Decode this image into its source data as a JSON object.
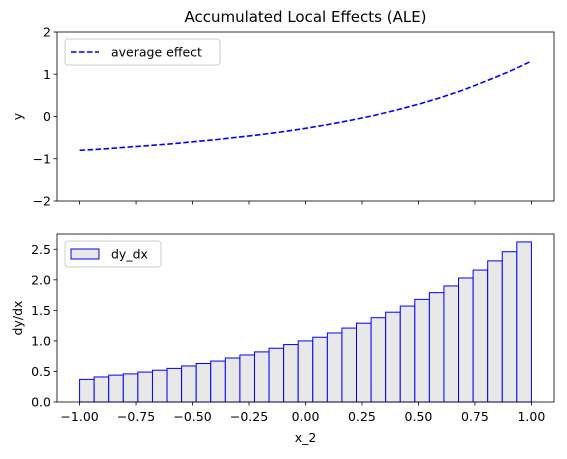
{
  "chart_data": [
    {
      "type": "line",
      "title": "Accumulated Local Effects (ALE)",
      "xlabel": "",
      "ylabel": "y",
      "xlim": [
        -1.1,
        1.1
      ],
      "ylim": [
        -2,
        2
      ],
      "xticks": [
        -1.0,
        -0.75,
        -0.5,
        -0.25,
        0.0,
        0.25,
        0.5,
        0.75,
        1.0
      ],
      "yticks": [
        -2,
        -1,
        0,
        1,
        2
      ],
      "ytick_labels": [
        "−2",
        "−1",
        "0",
        "1",
        "2"
      ],
      "legend": "top-left",
      "series": [
        {
          "name": "average effect",
          "x": [
            -1.0,
            -0.9,
            -0.8,
            -0.7,
            -0.6,
            -0.5,
            -0.4,
            -0.3,
            -0.2,
            -0.1,
            0.0,
            0.1,
            0.2,
            0.3,
            0.4,
            0.5,
            0.6,
            0.7,
            0.8,
            0.9,
            1.0
          ],
          "y": [
            -0.8,
            -0.77,
            -0.73,
            -0.69,
            -0.65,
            -0.6,
            -0.55,
            -0.49,
            -0.43,
            -0.36,
            -0.28,
            -0.19,
            -0.09,
            0.02,
            0.15,
            0.29,
            0.45,
            0.63,
            0.84,
            1.06,
            1.31
          ],
          "color": "#0000ff",
          "style": "dashed"
        }
      ]
    },
    {
      "type": "bar",
      "title": "",
      "xlabel": "x_2",
      "ylabel": "dy/dx",
      "xlim": [
        -1.1,
        1.1
      ],
      "ylim": [
        0,
        2.75
      ],
      "xticks": [
        -1.0,
        -0.75,
        -0.5,
        -0.25,
        0.0,
        0.25,
        0.5,
        0.75,
        1.0
      ],
      "xtick_labels": [
        "−1.00",
        "−0.75",
        "−0.50",
        "−0.25",
        "0.00",
        "0.25",
        "0.50",
        "0.75",
        "1.00"
      ],
      "yticks": [
        0.0,
        0.5,
        1.0,
        1.5,
        2.0,
        2.5
      ],
      "ytick_labels": [
        "0.0",
        "0.5",
        "1.0",
        "1.5",
        "2.0",
        "2.5"
      ],
      "legend": "top-left",
      "bin_edges": [
        -1.0,
        -0.9355,
        -0.871,
        -0.8065,
        -0.742,
        -0.6774,
        -0.6129,
        -0.5484,
        -0.4839,
        -0.4194,
        -0.3548,
        -0.2903,
        -0.2258,
        -0.1613,
        -0.0968,
        -0.0323,
        0.0323,
        0.0968,
        0.1613,
        0.2258,
        0.2903,
        0.3548,
        0.4194,
        0.4839,
        0.5484,
        0.6129,
        0.6774,
        0.742,
        0.8065,
        0.871,
        0.9355,
        1.0
      ],
      "series": [
        {
          "name": "dy_dx",
          "values": [
            0.37,
            0.41,
            0.44,
            0.46,
            0.49,
            0.52,
            0.55,
            0.59,
            0.63,
            0.67,
            0.72,
            0.77,
            0.82,
            0.88,
            0.94,
            1.0,
            1.06,
            1.13,
            1.21,
            1.29,
            1.38,
            1.47,
            1.57,
            1.68,
            1.79,
            1.9,
            2.03,
            2.16,
            2.31,
            2.46,
            2.62
          ],
          "fill": "#e8e8e8",
          "edge": "#0000ff"
        }
      ]
    }
  ]
}
